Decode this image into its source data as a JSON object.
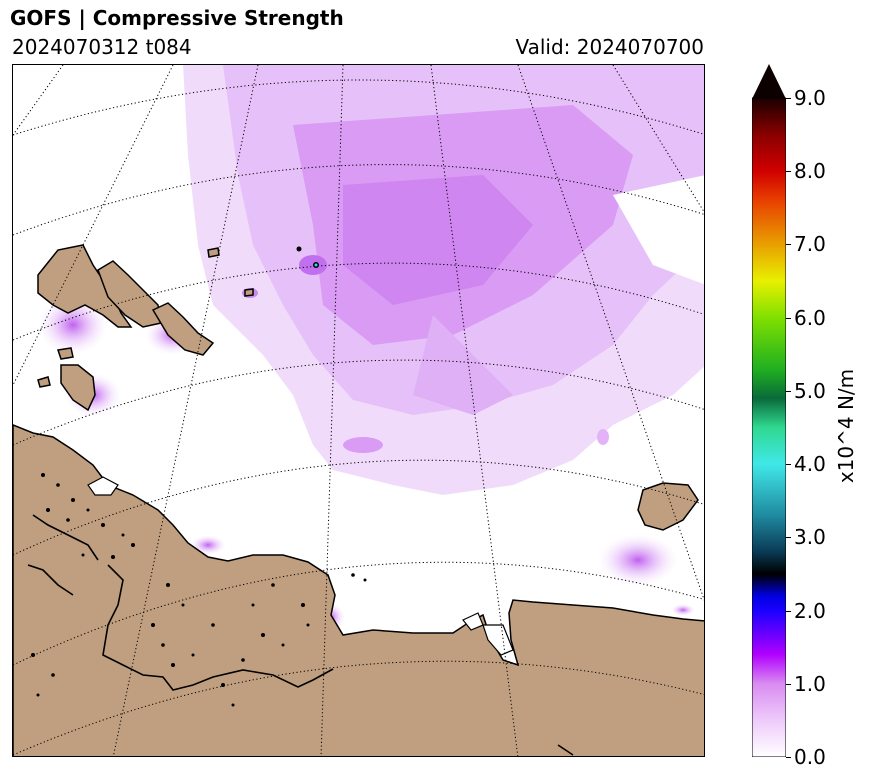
{
  "header": {
    "title": "GOFS  |  Compressive Strength",
    "run": "2024070312 t084",
    "valid": "Valid: 2024070700"
  },
  "colorbar": {
    "label": "x10^4 N/m",
    "ticks": [
      "0.0",
      "1.0",
      "2.0",
      "3.0",
      "4.0",
      "5.0",
      "6.0",
      "7.0",
      "8.0",
      "9.0"
    ],
    "min": 0,
    "max": 9,
    "extend": "max",
    "stops": [
      {
        "v": 0.0,
        "c": "#ffffff"
      },
      {
        "v": 0.5,
        "c": "#eecbfb"
      },
      {
        "v": 1.0,
        "c": "#d98cf0"
      },
      {
        "v": 1.4,
        "c": "#b000ff"
      },
      {
        "v": 2.0,
        "c": "#1a00ff"
      },
      {
        "v": 2.2,
        "c": "#0000e0"
      },
      {
        "v": 2.5,
        "c": "#000000"
      },
      {
        "v": 2.8,
        "c": "#0a3a55"
      },
      {
        "v": 3.3,
        "c": "#1f8aa0"
      },
      {
        "v": 4.0,
        "c": "#40e8e8"
      },
      {
        "v": 4.5,
        "c": "#30d890"
      },
      {
        "v": 4.9,
        "c": "#0a6a3a"
      },
      {
        "v": 5.3,
        "c": "#20b020"
      },
      {
        "v": 6.0,
        "c": "#80e000"
      },
      {
        "v": 6.5,
        "c": "#e8f000"
      },
      {
        "v": 7.0,
        "c": "#e8a000"
      },
      {
        "v": 7.6,
        "c": "#e84000"
      },
      {
        "v": 8.0,
        "c": "#d00000"
      },
      {
        "v": 8.5,
        "c": "#8a0000"
      },
      {
        "v": 9.0,
        "c": "#1a0000"
      }
    ],
    "over_color": "#0d0000"
  },
  "map": {
    "land_color": "#bf9f7f",
    "ice_color": "#d9a0f2"
  }
}
